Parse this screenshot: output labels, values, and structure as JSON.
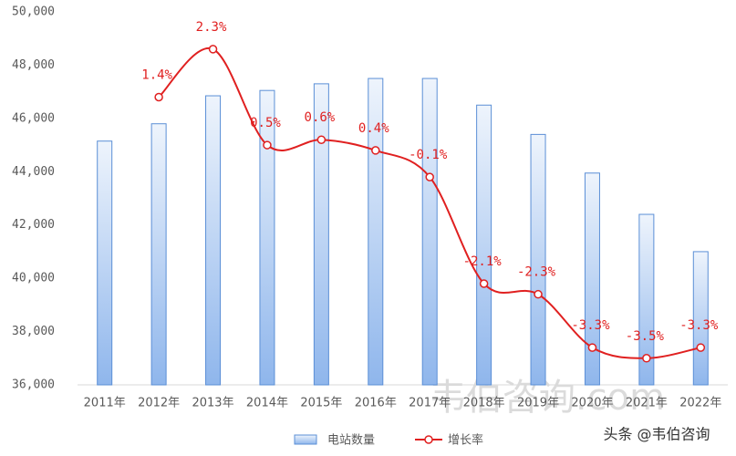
{
  "chart_data": {
    "type": "bar-line",
    "categories": [
      "2011年",
      "2012年",
      "2013年",
      "2014年",
      "2015年",
      "2016年",
      "2017年",
      "2018年",
      "2019年",
      "2020年",
      "2021年",
      "2022年"
    ],
    "series": [
      {
        "name": "电站数量",
        "type": "bar",
        "color": "#5b8fd6",
        "values": [
          45150,
          45800,
          46850,
          47050,
          47300,
          47500,
          47500,
          46500,
          45400,
          43950,
          42400,
          41000
        ]
      },
      {
        "name": "增长率",
        "type": "line",
        "axis": "y2",
        "color": "#e02020",
        "values": [
          null,
          1.4,
          2.3,
          0.5,
          0.6,
          0.4,
          -0.1,
          -2.1,
          -2.3,
          -3.3,
          -3.5,
          -3.3
        ],
        "value_labels": [
          null,
          "1.4%",
          "2.3%",
          "0.5%",
          "0.6%",
          "0.4%",
          "-0.1%",
          "-2.1%",
          "-2.3%",
          "-3.3%",
          "-3.5%",
          "-3.3%"
        ]
      }
    ],
    "ylim": [
      36000,
      50000
    ],
    "yticks": [
      {
        "value": 36000,
        "label": "36,000"
      },
      {
        "value": 38000,
        "label": "38,000"
      },
      {
        "value": 40000,
        "label": "40,000"
      },
      {
        "value": 42000,
        "label": "42,000"
      },
      {
        "value": 44000,
        "label": "44,000"
      },
      {
        "value": 46000,
        "label": "46,000"
      },
      {
        "value": 48000,
        "label": "48,000"
      },
      {
        "value": 50000,
        "label": "50,000"
      }
    ],
    "y2lim": [
      -4,
      3
    ],
    "legend": "bottom",
    "annotations": [
      "韦伯咨询.com",
      "头条 @韦伯咨询"
    ]
  }
}
